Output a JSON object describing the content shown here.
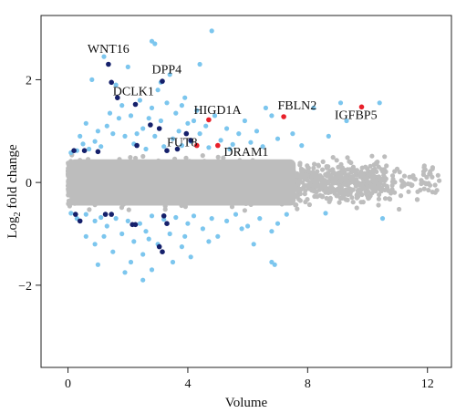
{
  "chart_data": {
    "type": "scatter",
    "xlabel": "Volume",
    "ylabel_main": "Log",
    "ylabel_sub": "2",
    "ylabel_rest": " fold change",
    "xlim": [
      -0.9,
      12.8
    ],
    "ylim": [
      -3.6,
      3.25
    ],
    "xticks": [
      0,
      4,
      8,
      12
    ],
    "yticks": [
      -2,
      0,
      2
    ],
    "colors": {
      "background_cloud": "#bdbdbd",
      "significant": "#7cc6ee",
      "highlight_navy": "#15206b",
      "highlight_red": "#e8202a"
    },
    "background_cloud": {
      "x_range": [
        0,
        12.4
      ],
      "y_band": [
        -0.55,
        0.55
      ],
      "description": "dense grey points, non-significant"
    },
    "significant_points": [
      [
        0.1,
        0.58
      ],
      [
        0.3,
        0.62
      ],
      [
        0.5,
        0.75
      ],
      [
        0.7,
        0.65
      ],
      [
        0.9,
        0.8
      ],
      [
        1.1,
        0.7
      ],
      [
        1.0,
        1.0
      ],
      [
        1.3,
        1.1
      ],
      [
        1.5,
        0.95
      ],
      [
        1.7,
        1.25
      ],
      [
        1.9,
        0.9
      ],
      [
        2.1,
        1.3
      ],
      [
        2.2,
        0.75
      ],
      [
        2.4,
        1.6
      ],
      [
        2.5,
        1.05
      ],
      [
        2.6,
        0.65
      ],
      [
        2.8,
        1.45
      ],
      [
        2.9,
        0.9
      ],
      [
        3.0,
        1.8
      ],
      [
        3.1,
        1.2
      ],
      [
        3.2,
        0.7
      ],
      [
        3.3,
        1.55
      ],
      [
        3.4,
        2.1
      ],
      [
        3.5,
        0.85
      ],
      [
        3.6,
        1.35
      ],
      [
        3.7,
        1.0
      ],
      [
        3.8,
        0.72
      ],
      [
        3.9,
        1.65
      ],
      [
        4.0,
        1.15
      ],
      [
        4.1,
        0.8
      ],
      [
        4.3,
        1.4
      ],
      [
        4.4,
        0.95
      ],
      [
        4.6,
        1.1
      ],
      [
        4.7,
        0.68
      ],
      [
        4.9,
        1.3
      ],
      [
        5.1,
        0.82
      ],
      [
        5.3,
        1.05
      ],
      [
        5.5,
        0.74
      ],
      [
        5.7,
        0.95
      ],
      [
        5.9,
        1.2
      ],
      [
        6.1,
        0.78
      ],
      [
        6.3,
        1.0
      ],
      [
        6.5,
        0.7
      ],
      [
        6.8,
        1.3
      ],
      [
        7.0,
        0.85
      ],
      [
        7.5,
        0.95
      ],
      [
        8.2,
        1.45
      ],
      [
        9.3,
        1.2
      ],
      [
        10.4,
        1.55
      ],
      [
        0.8,
        2.0
      ],
      [
        1.2,
        2.45
      ],
      [
        1.6,
        1.9
      ],
      [
        2.0,
        2.25
      ],
      [
        2.8,
        2.75
      ],
      [
        2.9,
        2.7
      ],
      [
        3.1,
        1.95
      ],
      [
        4.4,
        2.3
      ],
      [
        4.8,
        2.95
      ],
      [
        3.8,
        1.5
      ],
      [
        4.2,
        1.2
      ],
      [
        2.7,
        1.25
      ],
      [
        1.8,
        1.5
      ],
      [
        0.4,
        0.9
      ],
      [
        0.6,
        1.15
      ],
      [
        1.4,
        1.35
      ],
      [
        2.3,
        0.95
      ],
      [
        5.4,
        0.65
      ],
      [
        6.6,
        1.45
      ],
      [
        7.8,
        0.72
      ],
      [
        8.7,
        0.9
      ],
      [
        9.1,
        1.55
      ],
      [
        0.1,
        -0.6
      ],
      [
        0.3,
        -0.7
      ],
      [
        0.6,
        -0.62
      ],
      [
        0.9,
        -0.75
      ],
      [
        1.1,
        -0.68
      ],
      [
        1.3,
        -0.85
      ],
      [
        1.6,
        -0.7
      ],
      [
        1.8,
        -1.0
      ],
      [
        2.0,
        -0.75
      ],
      [
        2.2,
        -1.15
      ],
      [
        2.4,
        -0.8
      ],
      [
        2.6,
        -0.95
      ],
      [
        2.8,
        -0.65
      ],
      [
        3.0,
        -1.2
      ],
      [
        3.2,
        -0.72
      ],
      [
        3.4,
        -1.0
      ],
      [
        3.6,
        -0.68
      ],
      [
        3.8,
        -1.25
      ],
      [
        4.0,
        -0.8
      ],
      [
        4.2,
        -0.65
      ],
      [
        4.5,
        -0.9
      ],
      [
        4.8,
        -0.7
      ],
      [
        5.0,
        -1.05
      ],
      [
        5.3,
        -0.75
      ],
      [
        5.6,
        -0.62
      ],
      [
        6.0,
        -0.85
      ],
      [
        6.4,
        -0.7
      ],
      [
        6.8,
        -0.95
      ],
      [
        7.3,
        -0.62
      ],
      [
        8.6,
        -0.6
      ],
      [
        10.5,
        -0.7
      ],
      [
        0.9,
        -1.2
      ],
      [
        1.5,
        -1.35
      ],
      [
        2.1,
        -1.55
      ],
      [
        2.5,
        -1.4
      ],
      [
        1.0,
        -1.6
      ],
      [
        1.9,
        -1.75
      ],
      [
        2.8,
        -1.7
      ],
      [
        3.5,
        -1.55
      ],
      [
        4.1,
        -1.45
      ],
      [
        6.8,
        -1.55
      ],
      [
        6.9,
        -1.6
      ],
      [
        2.5,
        -1.9
      ],
      [
        0.6,
        -1.05
      ],
      [
        1.2,
        -1.05
      ],
      [
        2.7,
        -1.1
      ],
      [
        3.9,
        -1.05
      ],
      [
        4.7,
        -1.15
      ],
      [
        5.8,
        -0.9
      ],
      [
        6.2,
        -1.2
      ],
      [
        7.0,
        -0.8
      ]
    ],
    "navy_points": [
      [
        1.35,
        2.3
      ],
      [
        1.45,
        1.95
      ],
      [
        3.15,
        1.97
      ],
      [
        1.65,
        1.65
      ],
      [
        2.25,
        1.52
      ],
      [
        2.75,
        1.12
      ],
      [
        3.05,
        1.05
      ],
      [
        3.95,
        0.95
      ],
      [
        1.0,
        0.6
      ],
      [
        2.3,
        0.72
      ],
      [
        3.3,
        0.62
      ],
      [
        3.65,
        0.65
      ],
      [
        4.1,
        0.82
      ],
      [
        0.55,
        0.62
      ],
      [
        0.2,
        0.62
      ],
      [
        0.25,
        -0.62
      ],
      [
        0.4,
        -0.75
      ],
      [
        1.25,
        -0.62
      ],
      [
        1.45,
        -0.62
      ],
      [
        2.15,
        -0.82
      ],
      [
        2.25,
        -0.82
      ],
      [
        3.2,
        -0.65
      ],
      [
        3.3,
        -0.8
      ],
      [
        3.15,
        -1.35
      ],
      [
        3.05,
        -1.25
      ]
    ],
    "red_points": [
      [
        4.7,
        1.22
      ],
      [
        7.2,
        1.28
      ],
      [
        9.8,
        1.47
      ],
      [
        5.0,
        0.72
      ],
      [
        4.3,
        0.72
      ]
    ],
    "annotations": [
      {
        "text": "WNT16",
        "x": 0.65,
        "y": 2.52
      },
      {
        "text": "DPP4",
        "x": 2.8,
        "y": 2.12
      },
      {
        "text": "DCLK1",
        "x": 1.5,
        "y": 1.7
      },
      {
        "text": "HIGD1A",
        "x": 4.2,
        "y": 1.33
      },
      {
        "text": "FBLN2",
        "x": 7.0,
        "y": 1.42
      },
      {
        "text": "IGFBP5",
        "x": 8.9,
        "y": 1.24
      },
      {
        "text": "FUT8",
        "x": 3.3,
        "y": 0.7
      },
      {
        "text": "DRAM1",
        "x": 5.2,
        "y": 0.52
      }
    ]
  }
}
